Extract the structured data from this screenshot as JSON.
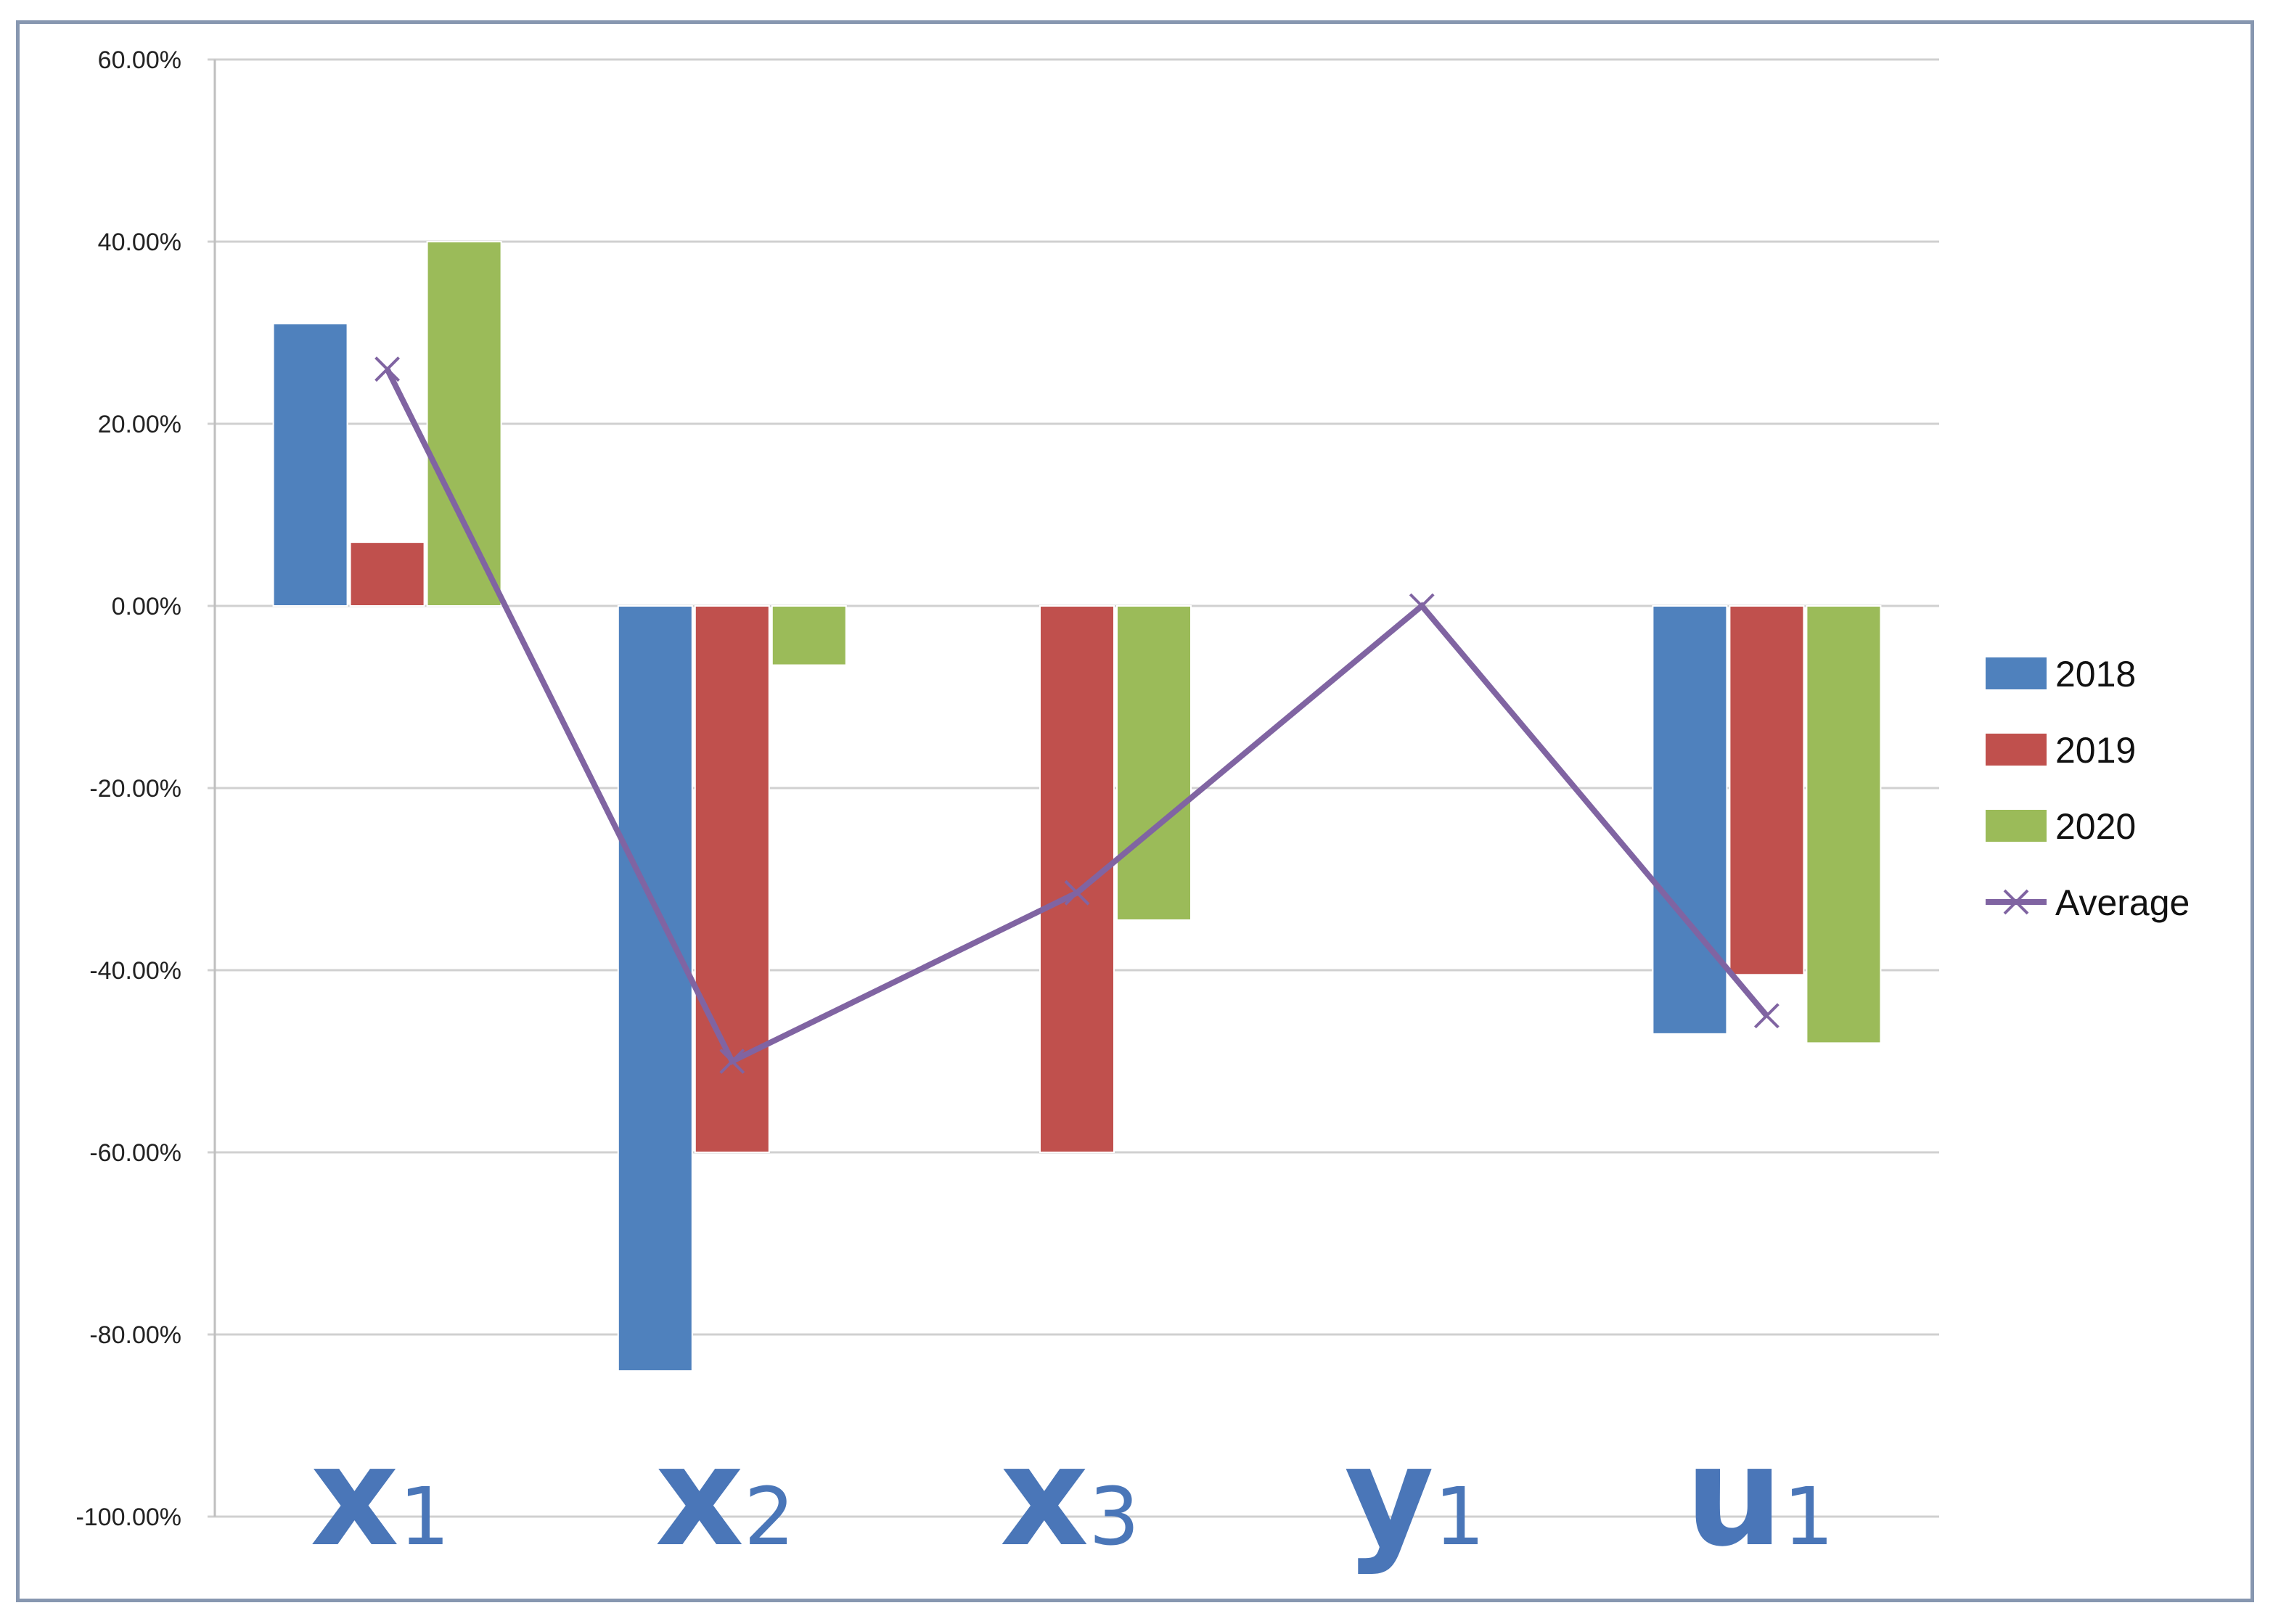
{
  "chart_data": {
    "type": "bar",
    "categories": [
      {
        "base": "x",
        "sub": "1"
      },
      {
        "base": "x",
        "sub": "2"
      },
      {
        "base": "x",
        "sub": "3"
      },
      {
        "base": "y",
        "sub": "1"
      },
      {
        "base": "u",
        "sub": "1"
      }
    ],
    "series": [
      {
        "name": "2018",
        "color": "#4f81bd",
        "values": [
          0.31,
          -0.84,
          0,
          0,
          -0.47
        ]
      },
      {
        "name": "2019",
        "color": "#c0504d",
        "values": [
          0.07,
          -0.6,
          -0.6,
          0,
          -0.405
        ]
      },
      {
        "name": "2020",
        "color": "#9bbb59",
        "values": [
          0.4,
          -0.065,
          -0.345,
          0,
          -0.48
        ]
      }
    ],
    "line_series": {
      "name": "Average",
      "color": "#8064a2",
      "values": [
        0.26,
        -0.5,
        -0.315,
        0,
        -0.45
      ]
    },
    "y_ticks": [
      "60.00%",
      "40.00%",
      "20.00%",
      "0.00%",
      "-20.00%",
      "-40.00%",
      "-60.00%",
      "-80.00%",
      "-100.00%"
    ],
    "ylim": [
      -1.0,
      0.6
    ],
    "grid": true,
    "legend": "right"
  }
}
